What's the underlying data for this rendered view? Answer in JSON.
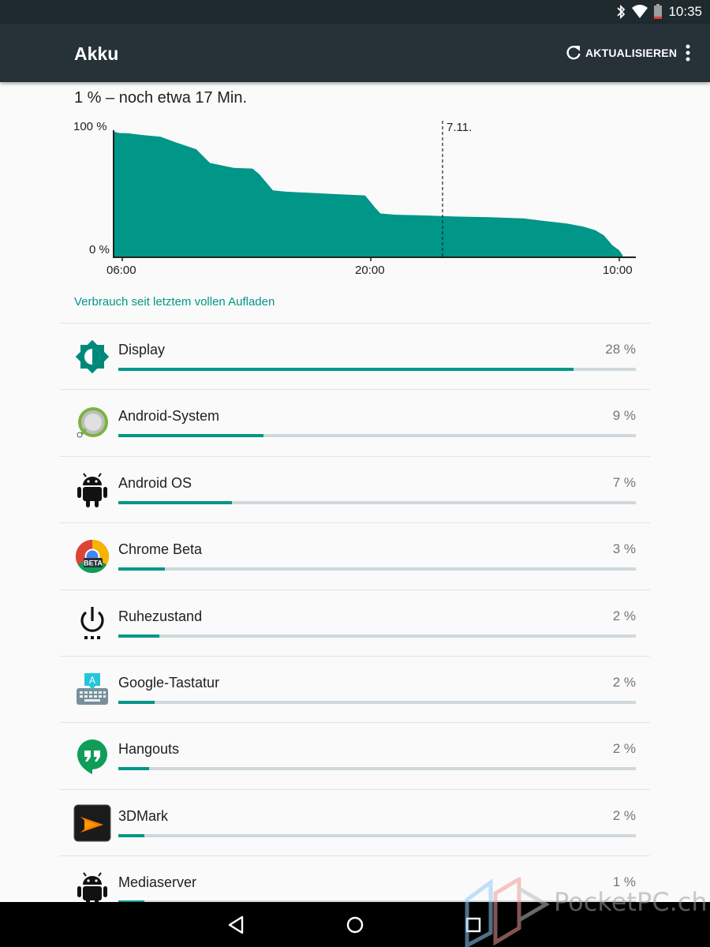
{
  "status_bar": {
    "time": "10:35",
    "icons": [
      "bluetooth-icon",
      "wifi-icon",
      "battery-low-icon"
    ],
    "battery_color": "#e53935"
  },
  "app_bar": {
    "title": "Akku",
    "refresh_label": "AKTUALISIEREN",
    "refresh_icon": "refresh-icon",
    "overflow_icon": "more-vert-icon",
    "background": "#263238"
  },
  "summary": "1 % – noch etwa 17 Min.",
  "chart_data": {
    "type": "area",
    "y_tick_labels": [
      "100 %",
      "0 %"
    ],
    "ylim": [
      0,
      100
    ],
    "x_tick_labels": [
      "06:00",
      "20:00",
      "10:00"
    ],
    "date_marker": "7.11.",
    "grid": false,
    "fill_color": "#009688",
    "series": [
      {
        "values": [
          [
            0,
            100
          ],
          [
            0.3,
            99
          ],
          [
            0.8,
            98.8
          ],
          [
            1.6,
            97.5
          ],
          [
            2.7,
            96
          ],
          [
            3.6,
            91.5
          ],
          [
            4.8,
            86
          ],
          [
            5.6,
            75
          ],
          [
            7,
            71
          ],
          [
            8.1,
            70.5
          ],
          [
            8.5,
            66
          ],
          [
            9.3,
            53
          ],
          [
            10,
            52
          ],
          [
            11.5,
            51
          ],
          [
            13,
            50
          ],
          [
            14.7,
            49
          ],
          [
            15.3,
            39
          ],
          [
            15.6,
            34.5
          ],
          [
            16.5,
            33.5
          ],
          [
            18,
            33
          ],
          [
            20,
            32
          ],
          [
            22,
            31.5
          ],
          [
            24,
            30.5
          ],
          [
            25.2,
            28.5
          ],
          [
            26.5,
            26.5
          ],
          [
            27.5,
            24
          ],
          [
            28.2,
            21
          ],
          [
            28.7,
            17
          ],
          [
            29.2,
            9
          ],
          [
            29.6,
            5
          ],
          [
            29.8,
            1
          ]
        ]
      }
    ]
  },
  "list_header": "Verbrauch seit letztem vollen Aufladen",
  "accent_color": "#009688",
  "items": [
    {
      "name": "Display",
      "percent": "28 %",
      "usage_fraction": 0.88,
      "icon": "display-brightness-icon"
    },
    {
      "name": "Android-System",
      "percent": "9 %",
      "usage_fraction": 0.28,
      "icon": "android-system-icon"
    },
    {
      "name": "Android OS",
      "percent": "7 %",
      "usage_fraction": 0.22,
      "icon": "android-robot-icon"
    },
    {
      "name": "Chrome Beta",
      "percent": "3 %",
      "usage_fraction": 0.09,
      "icon": "chrome-beta-icon"
    },
    {
      "name": "Ruhezustand",
      "percent": "2 %",
      "usage_fraction": 0.08,
      "icon": "power-idle-icon"
    },
    {
      "name": "Google-Tastatur",
      "percent": "2 %",
      "usage_fraction": 0.07,
      "icon": "google-keyboard-icon"
    },
    {
      "name": "Hangouts",
      "percent": "2 %",
      "usage_fraction": 0.06,
      "icon": "hangouts-icon"
    },
    {
      "name": "3DMark",
      "percent": "2 %",
      "usage_fraction": 0.05,
      "icon": "3dmark-icon"
    },
    {
      "name": "Mediaserver",
      "percent": "1 %",
      "usage_fraction": 0.05,
      "icon": "android-robot-icon"
    }
  ],
  "nav_bar": {
    "icons": [
      "back-icon",
      "home-icon",
      "recents-icon"
    ]
  },
  "watermark": {
    "text": "PocketPC.ch"
  }
}
